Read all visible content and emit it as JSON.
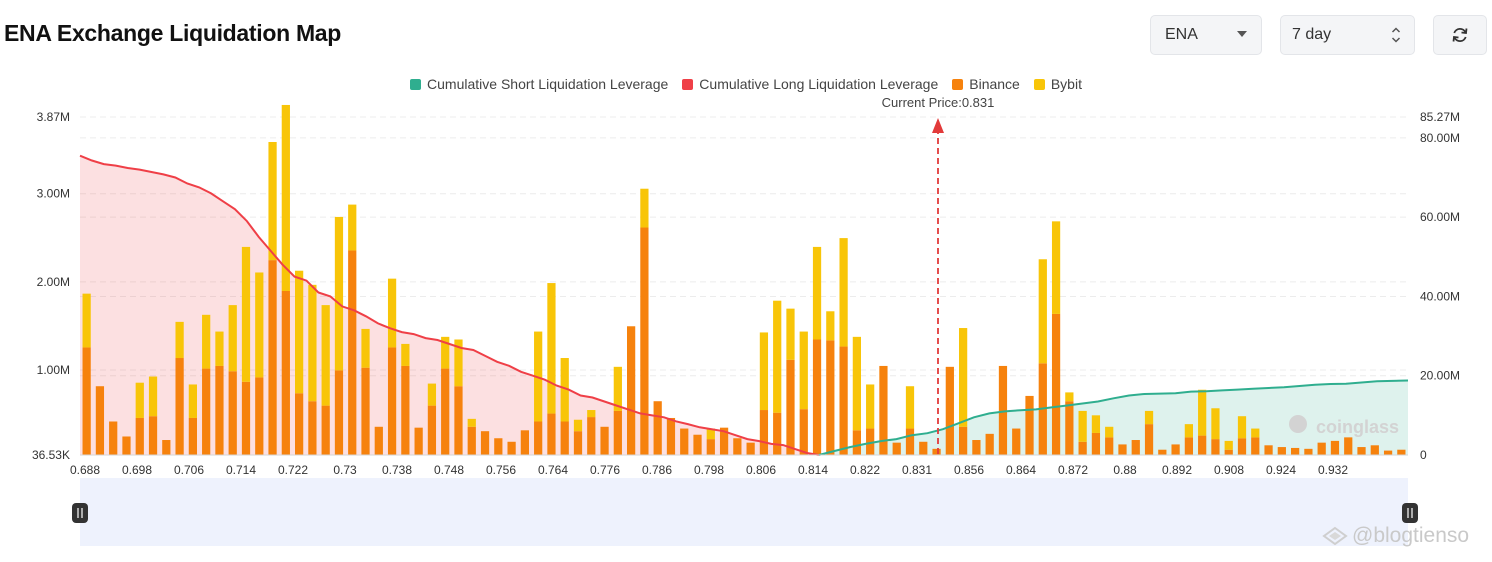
{
  "header": {
    "title": "ENA Exchange Liquidation Map",
    "coin_select": "ENA",
    "range_select": "7 day",
    "refresh_icon": "refresh-icon"
  },
  "watermark": {
    "text": "@blogtienso",
    "brand": "coinglass"
  },
  "colors": {
    "short_cum": "#2fae8f",
    "long_cum": "#ef3f47",
    "binance": "#f6820d",
    "bybit": "#f8c508",
    "slider_bg": "#eef2fd"
  },
  "chart_data": {
    "type": "bar",
    "title": "",
    "current_price_label": "Current Price:0.831",
    "current_price": 0.831,
    "legend": [
      {
        "name": "Cumulative Short Liquidation Leverage",
        "color": "#2fae8f"
      },
      {
        "name": "Cumulative Long Liquidation Leverage",
        "color": "#ef3f47"
      },
      {
        "name": "Binance",
        "color": "#f6820d"
      },
      {
        "name": "Bybit",
        "color": "#f8c508"
      }
    ],
    "left_axis": {
      "ticks": [
        "3.87M",
        "3.00M",
        "2.00M",
        "1.00M",
        "36.53K"
      ],
      "ylim": [
        36530,
        3870000
      ]
    },
    "right_axis": {
      "ticks": [
        "85.27M",
        "80.00M",
        "60.00M",
        "40.00M",
        "20.00M",
        "0"
      ],
      "ylim": [
        0,
        85270000
      ]
    },
    "x_tick_labels": [
      "0.688",
      "0.698",
      "0.706",
      "0.714",
      "0.722",
      "0.73",
      "0.738",
      "0.748",
      "0.756",
      "0.764",
      "0.776",
      "0.786",
      "0.798",
      "0.806",
      "0.814",
      "0.822",
      "0.831",
      "0.856",
      "0.864",
      "0.872",
      "0.88",
      "0.892",
      "0.908",
      "0.924",
      "0.932"
    ],
    "series": [
      {
        "name": "Binance",
        "values": [
          1220000,
          780000,
          380000,
          210000,
          420000,
          440000,
          170000,
          1100000,
          420000,
          980000,
          1010000,
          950000,
          830000,
          880000,
          2210000,
          1860000,
          700000,
          610000,
          560000,
          960000,
          2320000,
          990000,
          320000,
          1220000,
          1010000,
          310000,
          560000,
          980000,
          780000,
          320000,
          270000,
          190000,
          150000,
          280000,
          380000,
          470000,
          380000,
          270000,
          430000,
          320000,
          500000,
          1460000,
          2580000,
          610000,
          420000,
          300000,
          230000,
          180000,
          310000,
          190000,
          140000,
          510000,
          480000,
          1080000,
          520000,
          1310000,
          1300000,
          1230000,
          280000,
          300000,
          1010000,
          140000,
          300000,
          150000,
          70000,
          1000000,
          320000,
          170000,
          240000,
          1010000,
          300000,
          670000,
          1040000,
          1600000,
          610000,
          150000,
          250000,
          200000,
          120000,
          170000,
          350000,
          60000,
          120000,
          200000,
          220000,
          180000,
          60000,
          190000,
          200000,
          110000,
          90000,
          80000,
          70000,
          140000,
          160000,
          200000,
          90000,
          110000,
          50000,
          60000
        ],
        "colors_note": "Binance bars, orange"
      },
      {
        "name": "Bybit",
        "values": [
          610000,
          0,
          0,
          0,
          400000,
          450000,
          0,
          410000,
          380000,
          610000,
          390000,
          750000,
          1530000,
          1190000,
          1340000,
          2110000,
          1390000,
          1320000,
          1140000,
          1740000,
          520000,
          440000,
          0,
          780000,
          250000,
          0,
          250000,
          360000,
          530000,
          90000,
          0,
          0,
          0,
          0,
          1020000,
          1480000,
          720000,
          130000,
          80000,
          0,
          500000,
          0,
          440000,
          0,
          0,
          0,
          0,
          120000,
          0,
          0,
          0,
          880000,
          1270000,
          580000,
          880000,
          1050000,
          330000,
          1230000,
          1060000,
          500000,
          0,
          0,
          480000,
          0,
          0,
          0,
          1120000,
          0,
          0,
          0,
          0,
          0,
          1180000,
          1050000,
          100000,
          350000,
          200000,
          120000,
          0,
          0,
          150000,
          0,
          0,
          150000,
          520000,
          350000,
          100000,
          250000,
          100000,
          0,
          0,
          0,
          0,
          0,
          0,
          0,
          0,
          0,
          0,
          0
        ]
      },
      {
        "name": "Cumulative Long Liquidation Leverage",
        "x_range": [
          0.688,
          0.831
        ],
        "values_M": [
          75.5,
          74.3,
          73.4,
          73.0,
          72.4,
          72.0,
          71.4,
          70.8,
          70.0,
          68.5,
          67.5,
          66.0,
          64.0,
          62.0,
          59.0,
          55.0,
          51.5,
          48.0,
          45.0,
          44.0,
          41.0,
          40.0,
          37.5,
          36.5,
          35.0,
          33.2,
          32.0,
          31.0,
          30.5,
          29.5,
          29.0,
          28.0,
          27.0,
          26.5,
          25.0,
          23.5,
          22.5,
          21.0,
          20.0,
          19.0,
          17.5,
          16.5,
          15.0,
          14.5,
          13.5,
          12.5,
          11.5,
          10.5,
          10.0,
          9.5,
          8.5,
          7.8,
          7.0,
          6.5,
          6.0,
          5.0,
          4.0,
          3.5,
          2.8,
          2.5,
          1.5,
          0.5,
          0
        ]
      },
      {
        "name": "Cumulative Short Liquidation Leverage",
        "x_range": [
          0.831,
          0.945
        ],
        "values_M": [
          0,
          1.0,
          2.0,
          2.8,
          3.5,
          4.0,
          5.0,
          5.5,
          6.5,
          8.0,
          9.5,
          10.5,
          11.0,
          11.3,
          11.5,
          12.0,
          12.5,
          13.0,
          13.5,
          14.3,
          15.0,
          15.4,
          15.5,
          15.6,
          16.0,
          16.1,
          16.3,
          16.5,
          16.7,
          16.9,
          17.1,
          17.4,
          17.7,
          17.9,
          18.0,
          18.3,
          18.6,
          18.7,
          18.8
        ]
      }
    ],
    "grid": true,
    "legend_position": "top-center"
  }
}
